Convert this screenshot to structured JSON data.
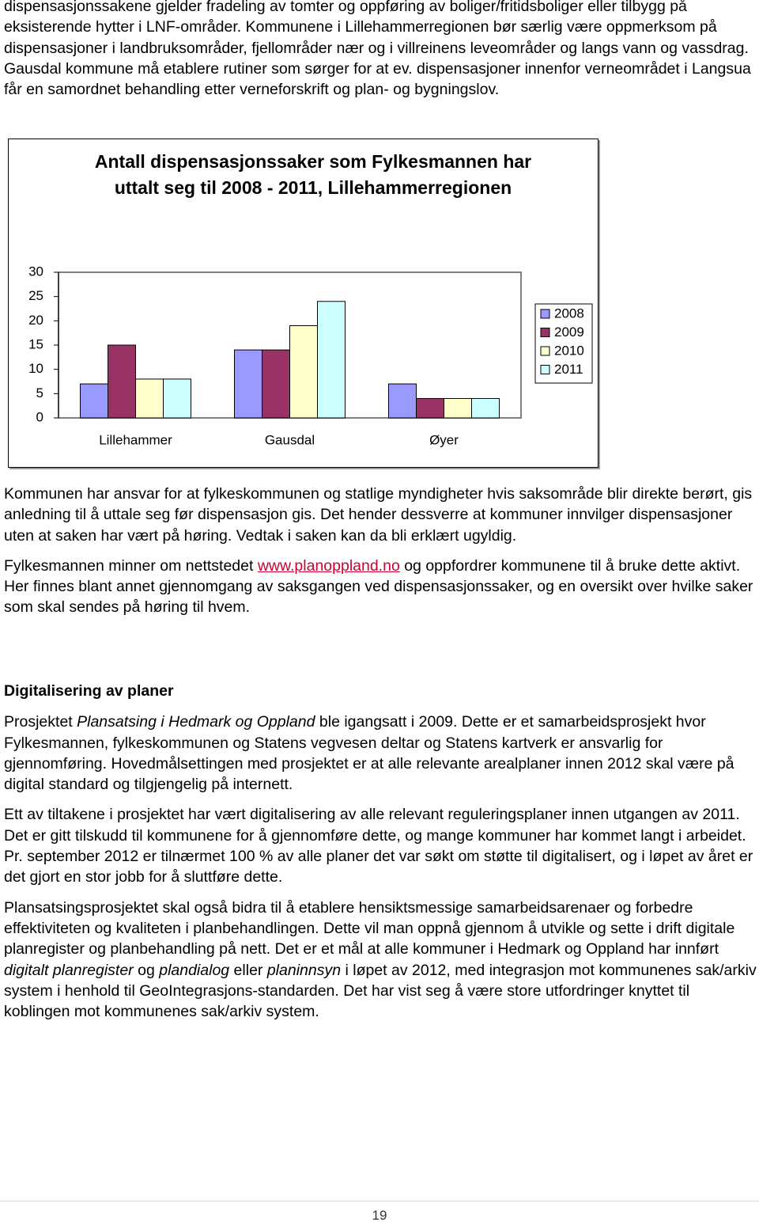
{
  "intro": "dispensasjonssakene gjelder fradeling av tomter og oppføring av boliger/fritidsboliger eller tilbygg på eksisterende hytter i LNF-områder. Kommunene i Lillehammerregionen bør særlig være oppmerksom på dispensasjoner i landbruksområder, fjellområder nær og i villreinens leveområder og langs vann og vassdrag. Gausdal kommune må etablere rutiner som sørger for at ev. dispensasjoner innenfor verneområdet i Langsua får en samordnet behandling etter verneforskrift og plan- og bygningslov.",
  "chart_data": {
    "type": "bar",
    "title": "Antall dispensasjonssaker som Fylkesmannen har uttalt seg til 2008 - 2011, Lillehammerregionen",
    "categories": [
      "Lillehammer",
      "Gausdal",
      "Øyer"
    ],
    "series": [
      {
        "name": "2008",
        "color": "#9999ff",
        "values": [
          7,
          14,
          7
        ]
      },
      {
        "name": "2009",
        "color": "#993366",
        "values": [
          15,
          14,
          4
        ]
      },
      {
        "name": "2010",
        "color": "#ffffcc",
        "values": [
          8,
          19,
          4
        ]
      },
      {
        "name": "2011",
        "color": "#ccffff",
        "values": [
          8,
          24,
          4
        ]
      }
    ],
    "ylim": [
      0,
      30
    ],
    "yticks": [
      0,
      5,
      10,
      15,
      20,
      25,
      30
    ],
    "grid": false,
    "legend": "right"
  },
  "paragraphs": [
    "Kommunen har ansvar for at fylkeskommunen og statlige myndigheter hvis saksområde blir direkte berørt, gis anledning til å uttale seg før dispensasjon gis. Det hender dessverre at kommuner innvilger dispensasjoner uten at saken har vært på høring. Vedtak i saken kan da bli erklært ugyldig.",
    [
      "Fylkesmannen minner om nettstedet ",
      "www.planoppland.no",
      " og oppfordrer kommunene til å bruke dette aktivt. Her finnes blant annet gjennomgang av saksgangen ved dispensasjonssaker, og en oversikt over hvilke saker som skal sendes på høring til hvem."
    ]
  ],
  "section": {
    "heading": "Digitalisering av planer",
    "paragraphs": [
      [
        "Prosjektet ",
        "Plansatsing i Hedmark og Oppland",
        " ble igangsatt i 2009. Dette er et samarbeidsprosjekt hvor Fylkesmannen, fylkeskommunen og Statens vegvesen deltar og Statens kartverk er ansvarlig for gjennomføring. Hovedmålsettingen med prosjektet er at alle relevante arealplaner innen 2012 skal være på digital standard og tilgjengelig på internett."
      ],
      [
        "Ett av tiltakene i prosjektet har vært digitalisering av alle relevant reguleringsplaner innen utgangen av 2011. Det er gitt tilskudd til kommunene for å gjennomføre dette, og mange kommuner har kommet langt i arbeidet. Pr. september 2012 er tilnærmet 100 % av alle planer det var søkt om støtte til digitalisert, og i løpet av året er det gjort en stor jobb for å sluttføre dette."
      ],
      [
        "Plansatsingsprosjektet skal også bidra til å etablere hensiktsmessige samarbeidsarenaer og forbedre effektiviteten og kvaliteten i planbehandlingen. Dette vil man oppnå gjennom å utvikle og sette i drift digitale planregister og planbehandling på nett. Det er et mål at alle kommuner i Hedmark og Oppland har innført ",
        "digitalt planregister",
        " og ",
        "plandialog",
        " eller ",
        "planinnsyn",
        " i løpet av 2012, med integrasjon mot kommunenes sak/arkiv system i henhold til GeoIntegrasjons-standarden. Det har vist seg å være store utfordringer knyttet til koblingen mot kommunenes sak/arkiv system."
      ]
    ]
  },
  "footer": {
    "page_number": "19"
  }
}
